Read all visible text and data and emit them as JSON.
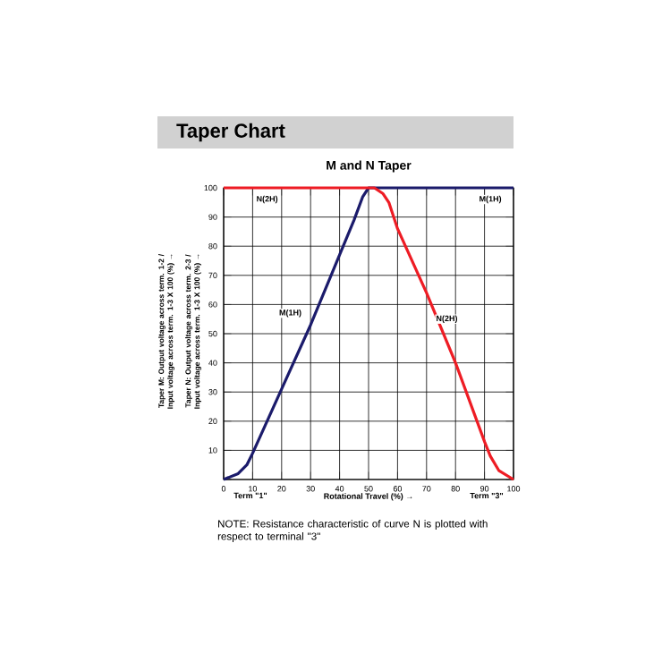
{
  "chart_data": {
    "type": "line",
    "title": "Taper Chart",
    "subtitle": "M and N Taper",
    "xlabel": "Rotational Travel (%) →",
    "series": [
      {
        "color": "#1b1b6b",
        "x": [
          0,
          5,
          8,
          10,
          20,
          30,
          40,
          45,
          48,
          50,
          100
        ],
        "values": [
          0,
          2,
          5,
          9,
          31,
          53,
          77,
          89,
          97,
          100,
          100
        ]
      },
      {
        "color": "#ee1c24",
        "x": [
          0,
          52,
          55,
          57,
          60,
          70,
          80,
          90,
          92,
          95,
          100
        ],
        "values": [
          100,
          100,
          98,
          95,
          86,
          64,
          40,
          13,
          8,
          3,
          0
        ]
      }
    ],
    "xlim": [
      0,
      100
    ],
    "ylim": [
      0,
      100
    ],
    "xticks": [
      0,
      10,
      20,
      30,
      40,
      50,
      60,
      70,
      80,
      90,
      100
    ],
    "yticks": [
      {
        "value": 0,
        "label": null
      },
      10,
      20,
      30,
      40,
      50,
      60,
      70,
      80,
      90,
      100
    ],
    "grid": true,
    "marker": "none",
    "line_style": "solid",
    "annotations": [
      "Taper M: Output voltage across term. 1-2 / Input voltage across term. 1-3 X 100 (%) →",
      "Taper N: Output voltage across term. 2-3 / Input voltage across term. 1-3 X 100 (%) →",
      "Term \"1\"",
      "Term \"3\"",
      "NOTE: Resistance characteristic of curve N is plotted with respect to terminal \"3\"",
      {
        "text": "N(2H)",
        "x": 15,
        "y": 96
      },
      {
        "text": "M(1H)",
        "x": 92,
        "y": 96
      },
      {
        "text": "M(1H)",
        "x": 23,
        "y": 57
      },
      {
        "text": "N(2H)",
        "x": 77,
        "y": 55
      }
    ]
  }
}
